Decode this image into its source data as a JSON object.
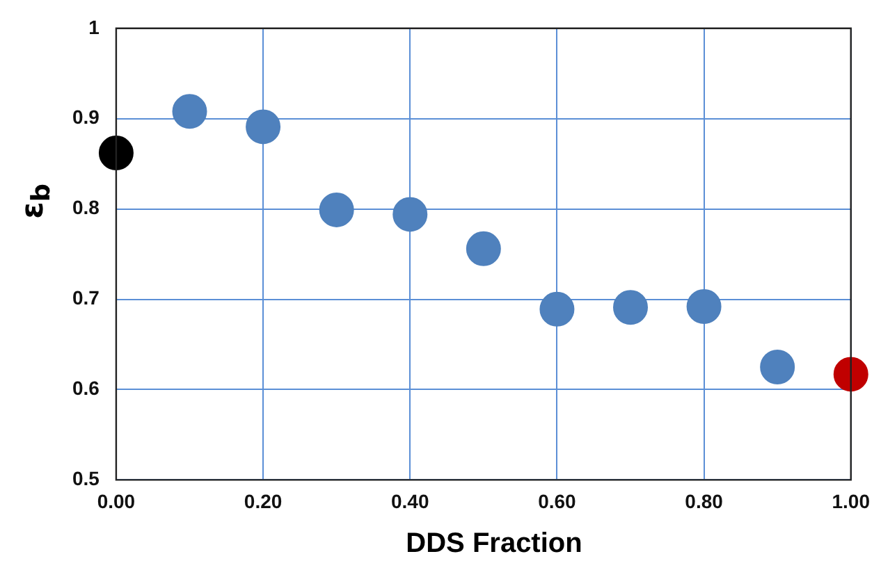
{
  "chart_data": {
    "type": "scatter",
    "xlabel": "DDS Fraction",
    "ylabel": "ε$_{b}$",
    "xlim": [
      0,
      1
    ],
    "xticks": [
      {
        "value": 0,
        "label": "0.00"
      },
      {
        "value": 0.2,
        "label": "0.20"
      },
      {
        "value": 0.4,
        "label": "0.40"
      },
      {
        "value": 0.6,
        "label": "0.60"
      },
      {
        "value": 0.8,
        "label": "0.80"
      },
      {
        "value": 1,
        "label": "1.00"
      }
    ],
    "ylim": [
      0.5,
      1
    ],
    "yticks": [
      0.5,
      0.6,
      0.7,
      0.8,
      0.9,
      1
    ],
    "grid": true,
    "legend": false,
    "marker": "circle",
    "series": [
      {
        "color": "#000000",
        "x": [
          0
        ],
        "values": [
          0.862
        ]
      },
      {
        "color": "#4f81bd",
        "x": [
          0.1,
          0.2,
          0.3,
          0.4,
          0.5,
          0.6,
          0.7,
          0.8,
          0.9
        ],
        "values": [
          0.908,
          0.891,
          0.799,
          0.794,
          0.756,
          0.689,
          0.691,
          0.692,
          0.625
        ]
      },
      {
        "color": "#c00000",
        "x": [
          1
        ],
        "values": [
          0.617
        ]
      }
    ]
  }
}
